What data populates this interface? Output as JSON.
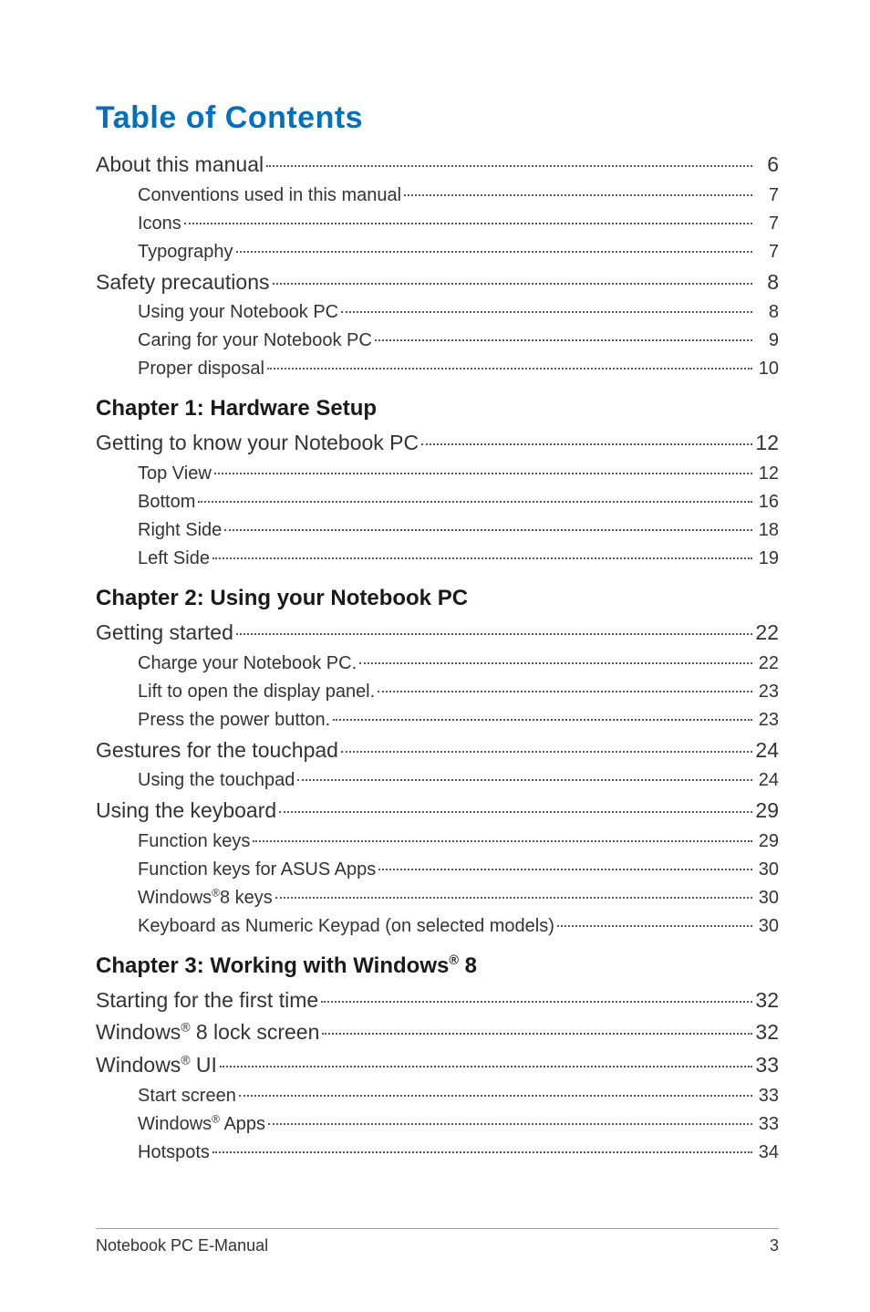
{
  "page_title": "Table of Contents",
  "title_color": "#0070c0",
  "text_color": "#333333",
  "footer": {
    "book_title": "Notebook PC E-Manual",
    "page_number": "3"
  },
  "sections": [
    {
      "heading": null,
      "items": [
        {
          "label": "About this manual",
          "page": "6",
          "level": 1
        },
        {
          "label": "Conventions used in this manual",
          "page": "7",
          "level": 2
        },
        {
          "label": "Icons",
          "page": "7",
          "level": 2
        },
        {
          "label": "Typography",
          "page": "7",
          "level": 2
        },
        {
          "label": "Safety precautions",
          "page": "8",
          "level": 1
        },
        {
          "label": "Using your Notebook PC",
          "page": "8",
          "level": 2
        },
        {
          "label": "Caring for your Notebook PC",
          "page": "9",
          "level": 2
        },
        {
          "label": "Proper disposal",
          "page": "10",
          "level": 2
        }
      ]
    },
    {
      "heading": "Chapter 1: Hardware Setup",
      "items": [
        {
          "label": "Getting to know your Notebook PC",
          "page": "12",
          "level": 1
        },
        {
          "label": "Top View",
          "page": "12",
          "level": 2
        },
        {
          "label": "Bottom",
          "page": "16",
          "level": 2
        },
        {
          "label": "Right Side",
          "page": "18",
          "level": 2
        },
        {
          "label": "Left Side",
          "page": "19",
          "level": 2
        }
      ]
    },
    {
      "heading": "Chapter 2: Using your Notebook PC",
      "items": [
        {
          "label": "Getting started",
          "page": "22",
          "level": 1
        },
        {
          "label": "Charge your Notebook PC.",
          "page": "22",
          "level": 2
        },
        {
          "label": "Lift to open the display panel.",
          "page": "23",
          "level": 2
        },
        {
          "label": "Press the power button.",
          "page": "23",
          "level": 2
        },
        {
          "label": "Gestures for the touchpad",
          "page": "24",
          "level": 1
        },
        {
          "label": "Using the touchpad",
          "page": "24",
          "level": 2
        },
        {
          "label": "Using the keyboard",
          "page": "29",
          "level": 1
        },
        {
          "label": "Function keys",
          "page": "29",
          "level": 2
        },
        {
          "label": "Function keys for ASUS Apps",
          "page": "30",
          "level": 2
        },
        {
          "label": "Windows®8 keys",
          "page": "30",
          "level": 2
        },
        {
          "label": "Keyboard as Numeric Keypad (on selected models)",
          "page": "30",
          "level": 2
        }
      ]
    },
    {
      "heading": "Chapter 3: Working with Windows® 8",
      "items": [
        {
          "label": "Starting for the first time",
          "page": "32",
          "level": 1
        },
        {
          "label": "Windows® 8 lock screen",
          "page": "32",
          "level": 1
        },
        {
          "label": "Windows® UI",
          "page": "33",
          "level": 1
        },
        {
          "label": "Start screen",
          "page": "33",
          "level": 2
        },
        {
          "label": "Windows® Apps",
          "page": "33",
          "level": 2
        },
        {
          "label": "Hotspots",
          "page": "34",
          "level": 2
        }
      ]
    }
  ]
}
